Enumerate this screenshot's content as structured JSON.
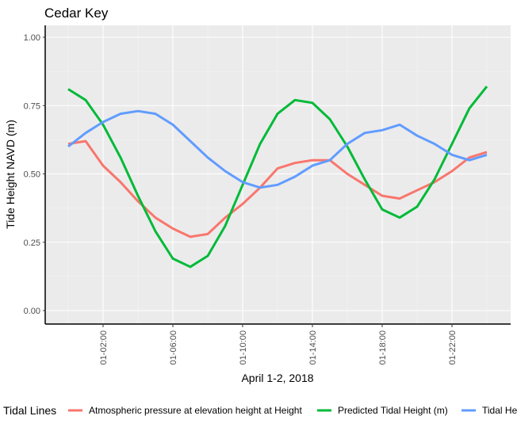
{
  "chart_data": {
    "type": "line",
    "title": "Cedar Key",
    "xlabel": "April 1-2, 2018",
    "ylabel": "Tide Height NAVD (m)",
    "x": [
      0,
      1,
      2,
      3,
      4,
      5,
      6,
      7,
      8,
      9,
      10,
      11,
      12,
      13,
      14,
      15,
      16,
      17,
      18,
      19,
      20,
      21,
      22,
      23,
      24
    ],
    "x_unit": "hours after 2018-04-01 00:00",
    "x_ticks": [
      {
        "x": 2,
        "label": "01-02:00"
      },
      {
        "x": 6,
        "label": "01-06:00"
      },
      {
        "x": 10,
        "label": "01-10:00"
      },
      {
        "x": 14,
        "label": "01-14:00"
      },
      {
        "x": 18,
        "label": "01-18:00"
      },
      {
        "x": 22,
        "label": "01-22:00"
      }
    ],
    "ylim": [
      0,
      1
    ],
    "y_ticks": [
      "0.00",
      "0.25",
      "0.50",
      "0.75",
      "1.00"
    ],
    "grid": true,
    "legend": {
      "title": "Tidal Lines",
      "placement": "bottom"
    },
    "series": [
      {
        "name": "Atmospheric pressure at elevation height at Height",
        "color": "#F8766D",
        "values": [
          0.61,
          0.62,
          0.53,
          0.47,
          0.4,
          0.34,
          0.3,
          0.27,
          0.28,
          0.34,
          0.39,
          0.45,
          0.52,
          0.54,
          0.55,
          0.55,
          0.5,
          0.46,
          0.42,
          0.41,
          0.44,
          0.47,
          0.51,
          0.56,
          0.58
        ]
      },
      {
        "name": "Predicted Tidal Height (m)",
        "color": "#00BA38",
        "values": [
          0.81,
          0.77,
          0.68,
          0.56,
          0.42,
          0.29,
          0.19,
          0.16,
          0.2,
          0.31,
          0.46,
          0.61,
          0.72,
          0.77,
          0.76,
          0.7,
          0.6,
          0.48,
          0.37,
          0.34,
          0.38,
          0.48,
          0.61,
          0.74,
          0.82
        ]
      },
      {
        "name": "Tidal Height (m)",
        "color": "#619CFF",
        "values": [
          0.6,
          0.65,
          0.69,
          0.72,
          0.73,
          0.72,
          0.68,
          0.62,
          0.56,
          0.51,
          0.47,
          0.45,
          0.46,
          0.49,
          0.53,
          0.55,
          0.61,
          0.65,
          0.66,
          0.68,
          0.64,
          0.61,
          0.57,
          0.55,
          0.57
        ]
      }
    ]
  }
}
